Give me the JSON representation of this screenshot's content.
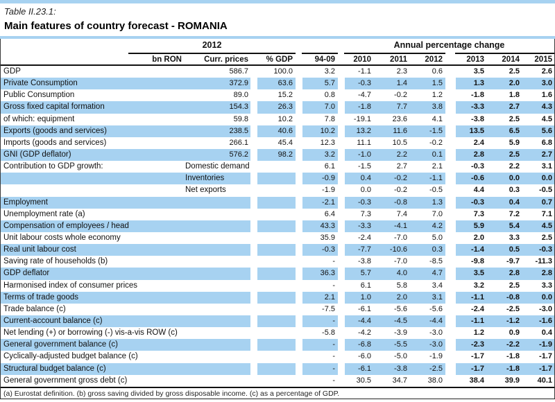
{
  "table_number": "Table II.23.1:",
  "title": "Main features of country forecast - ROMANIA",
  "colors": {
    "row_band": "#a7d2f1",
    "rule": "#111111"
  },
  "header": {
    "group_2012": "2012",
    "group_apc": "Annual percentage change",
    "cols": {
      "bn": "bn RON",
      "curr": "Curr. prices",
      "pct": "% GDP",
      "avg": "94-09",
      "y10": "2010",
      "y11": "2011",
      "y12": "2012",
      "y13": "2013",
      "y14": "2014",
      "y15": "2015"
    }
  },
  "rows": [
    {
      "label": "GDP",
      "sub": "",
      "curr": "586.7",
      "pct": "100.0",
      "avg": "3.2",
      "y10": "-1.1",
      "y11": "2.3",
      "y12": "0.6",
      "y13": "3.5",
      "y14": "2.5",
      "y15": "2.6"
    },
    {
      "label": "Private Consumption",
      "sub": "",
      "curr": "372.9",
      "pct": "63.6",
      "avg": "5.7",
      "y10": "-0.3",
      "y11": "1.4",
      "y12": "1.5",
      "y13": "1.3",
      "y14": "2.0",
      "y15": "3.0"
    },
    {
      "label": "Public Consumption",
      "sub": "",
      "curr": "89.0",
      "pct": "15.2",
      "avg": "0.8",
      "y10": "-4.7",
      "y11": "-0.2",
      "y12": "1.2",
      "y13": "-1.8",
      "y14": "1.8",
      "y15": "1.6"
    },
    {
      "label": "Gross fixed capital formation",
      "sub": "",
      "curr": "154.3",
      "pct": "26.3",
      "avg": "7.0",
      "y10": "-1.8",
      "y11": "7.7",
      "y12": "3.8",
      "y13": "-3.3",
      "y14": "2.7",
      "y15": "4.3"
    },
    {
      "label": "of which: equipment",
      "sub": "",
      "curr": "59.8",
      "pct": "10.2",
      "avg": "7.8",
      "y10": "-19.1",
      "y11": "23.6",
      "y12": "4.1",
      "y13": "-3.8",
      "y14": "2.5",
      "y15": "4.5"
    },
    {
      "label": "Exports (goods and services)",
      "sub": "",
      "curr": "238.5",
      "pct": "40.6",
      "avg": "10.2",
      "y10": "13.2",
      "y11": "11.6",
      "y12": "-1.5",
      "y13": "13.5",
      "y14": "6.5",
      "y15": "5.6"
    },
    {
      "label": "Imports (goods and services)",
      "sub": "",
      "curr": "266.1",
      "pct": "45.4",
      "avg": "12.3",
      "y10": "11.1",
      "y11": "10.5",
      "y12": "-0.2",
      "y13": "2.4",
      "y14": "5.9",
      "y15": "6.8"
    },
    {
      "label": "GNI (GDP deflator)",
      "sub": "",
      "curr": "576.2",
      "pct": "98.2",
      "avg": "3.2",
      "y10": "-1.0",
      "y11": "2.2",
      "y12": "0.1",
      "y13": "2.8",
      "y14": "2.5",
      "y15": "2.7"
    },
    {
      "label": "Contribution to GDP growth:",
      "sub": "Domestic demand",
      "curr": "",
      "pct": "",
      "avg": "6.1",
      "y10": "-1.5",
      "y11": "2.7",
      "y12": "2.1",
      "y13": "-0.3",
      "y14": "2.2",
      "y15": "3.1"
    },
    {
      "label": "",
      "sub": "Inventories",
      "curr": "",
      "pct": "",
      "avg": "-0.9",
      "y10": "0.4",
      "y11": "-0.2",
      "y12": "-1.1",
      "y13": "-0.6",
      "y14": "0.0",
      "y15": "0.0"
    },
    {
      "label": "",
      "sub": "Net exports",
      "curr": "",
      "pct": "",
      "avg": "-1.9",
      "y10": "0.0",
      "y11": "-0.2",
      "y12": "-0.5",
      "y13": "4.4",
      "y14": "0.3",
      "y15": "-0.5"
    },
    {
      "label": "Employment",
      "sub": "",
      "curr": "",
      "pct": "",
      "avg": "-2.1",
      "y10": "-0.3",
      "y11": "-0.8",
      "y12": "1.3",
      "y13": "-0.3",
      "y14": "0.4",
      "y15": "0.7"
    },
    {
      "label": "Unemployment rate (a)",
      "sub": "",
      "curr": "",
      "pct": "",
      "avg": "6.4",
      "y10": "7.3",
      "y11": "7.4",
      "y12": "7.0",
      "y13": "7.3",
      "y14": "7.2",
      "y15": "7.1"
    },
    {
      "label": "Compensation of employees / head",
      "sub": "",
      "curr": "",
      "pct": "",
      "avg": "43.3",
      "y10": "-3.3",
      "y11": "-4.1",
      "y12": "4.2",
      "y13": "5.9",
      "y14": "5.4",
      "y15": "4.5"
    },
    {
      "label": "Unit labour costs whole economy",
      "sub": "",
      "curr": "",
      "pct": "",
      "avg": "35.9",
      "y10": "-2.4",
      "y11": "-7.0",
      "y12": "5.0",
      "y13": "2.0",
      "y14": "3.3",
      "y15": "2.5"
    },
    {
      "label": "Real unit labour cost",
      "sub": "",
      "curr": "",
      "pct": "",
      "avg": "-0.3",
      "y10": "-7.7",
      "y11": "-10.6",
      "y12": "0.3",
      "y13": "-1.4",
      "y14": "0.5",
      "y15": "-0.3"
    },
    {
      "label": "Saving rate of households (b)",
      "sub": "",
      "curr": "",
      "pct": "",
      "avg": "-",
      "y10": "-3.8",
      "y11": "-7.0",
      "y12": "-8.5",
      "y13": "-9.8",
      "y14": "-9.7",
      "y15": "-11.3"
    },
    {
      "label": "GDP deflator",
      "sub": "",
      "curr": "",
      "pct": "",
      "avg": "36.3",
      "y10": "5.7",
      "y11": "4.0",
      "y12": "4.7",
      "y13": "3.5",
      "y14": "2.8",
      "y15": "2.8"
    },
    {
      "label": "Harmonised index of consumer prices",
      "sub": "",
      "curr": "",
      "pct": "",
      "avg": "-",
      "y10": "6.1",
      "y11": "5.8",
      "y12": "3.4",
      "y13": "3.2",
      "y14": "2.5",
      "y15": "3.3"
    },
    {
      "label": "Terms of trade goods",
      "sub": "",
      "curr": "",
      "pct": "",
      "avg": "2.1",
      "y10": "1.0",
      "y11": "2.0",
      "y12": "3.1",
      "y13": "-1.1",
      "y14": "-0.8",
      "y15": "0.0"
    },
    {
      "label": "Trade balance (c)",
      "sub": "",
      "curr": "",
      "pct": "",
      "avg": "-7.5",
      "y10": "-6.1",
      "y11": "-5.6",
      "y12": "-5.6",
      "y13": "-2.4",
      "y14": "-2.5",
      "y15": "-3.0"
    },
    {
      "label": "Current-account balance (c)",
      "sub": "",
      "curr": "",
      "pct": "",
      "avg": "-",
      "y10": "-4.4",
      "y11": "-4.5",
      "y12": "-4.4",
      "y13": "-1.1",
      "y14": "-1.2",
      "y15": "-1.6"
    },
    {
      "label": "Net lending (+) or borrowing (-) vis-a-vis ROW (c)",
      "sub": "",
      "curr": "",
      "pct": "",
      "avg": "-5.8",
      "y10": "-4.2",
      "y11": "-3.9",
      "y12": "-3.0",
      "y13": "1.2",
      "y14": "0.9",
      "y15": "0.4"
    },
    {
      "label": "General government balance (c)",
      "sub": "",
      "curr": "",
      "pct": "",
      "avg": "-",
      "y10": "-6.8",
      "y11": "-5.5",
      "y12": "-3.0",
      "y13": "-2.3",
      "y14": "-2.2",
      "y15": "-1.9"
    },
    {
      "label": "Cyclically-adjusted budget balance (c)",
      "sub": "",
      "curr": "",
      "pct": "",
      "avg": "-",
      "y10": "-6.0",
      "y11": "-5.0",
      "y12": "-1.9",
      "y13": "-1.7",
      "y14": "-1.8",
      "y15": "-1.7"
    },
    {
      "label": "Structural budget balance (c)",
      "sub": "",
      "curr": "",
      "pct": "",
      "avg": "-",
      "y10": "-6.1",
      "y11": "-3.8",
      "y12": "-2.5",
      "y13": "-1.7",
      "y14": "-1.8",
      "y15": "-1.7"
    },
    {
      "label": "General government gross debt (c)",
      "sub": "",
      "curr": "",
      "pct": "",
      "avg": "-",
      "y10": "30.5",
      "y11": "34.7",
      "y12": "38.0",
      "y13": "38.4",
      "y14": "39.9",
      "y15": "40.1"
    }
  ],
  "footnote": "(a) Eurostat definition.  (b) gross saving divided by gross disposable income.  (c) as a percentage of GDP."
}
